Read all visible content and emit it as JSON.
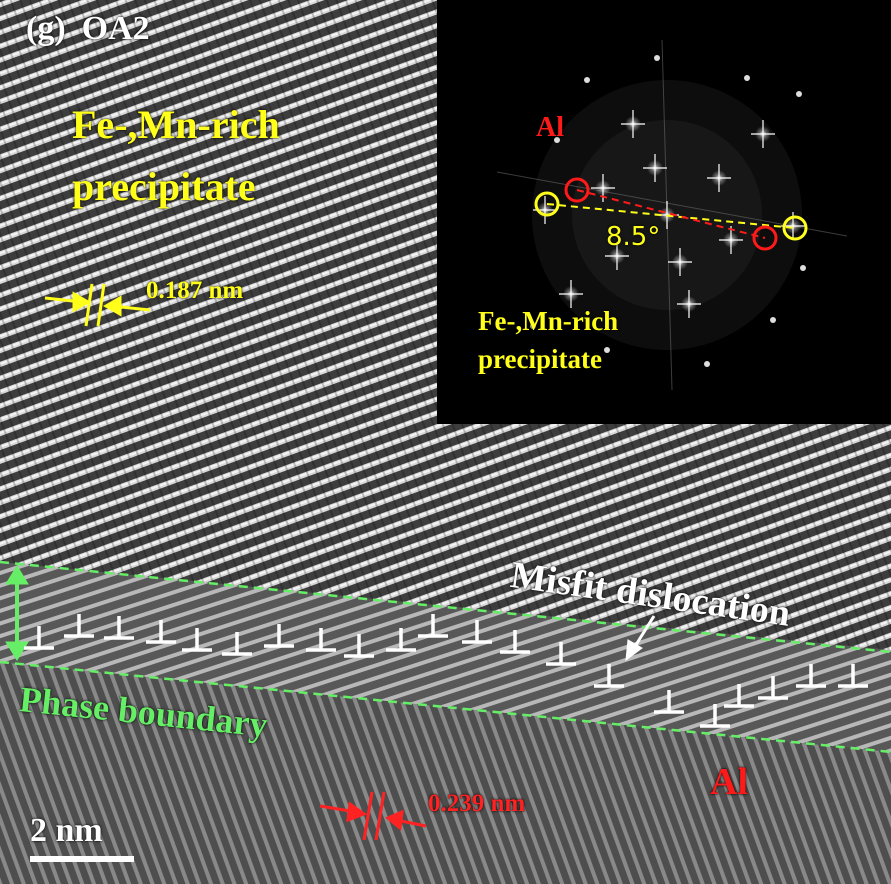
{
  "figure": {
    "panel_label": "(g)",
    "sample_label": "OA2",
    "scale_bar": "2 nm",
    "precipitate_label_line1": "Fe-,Mn-rich",
    "precipitate_label_line2": "precipitate",
    "precipitate_spacing": "0.187 nm",
    "misfit_label": "Misfit dislocation",
    "phase_boundary_label": "Phase boundary",
    "matrix_label": "Al",
    "matrix_spacing": "0.239 nm"
  },
  "fft_inset": {
    "al_label": "Al",
    "angle_label": "8.5°",
    "precipitate_label_line1": "Fe-,Mn-rich",
    "precipitate_label_line2": "precipitate"
  },
  "colors": {
    "precipitate": "#ffff1a",
    "aluminum": "#ff1a1a",
    "boundary": "#66ee66",
    "dislocation": "#ffffff",
    "inset_background": "#000000"
  }
}
